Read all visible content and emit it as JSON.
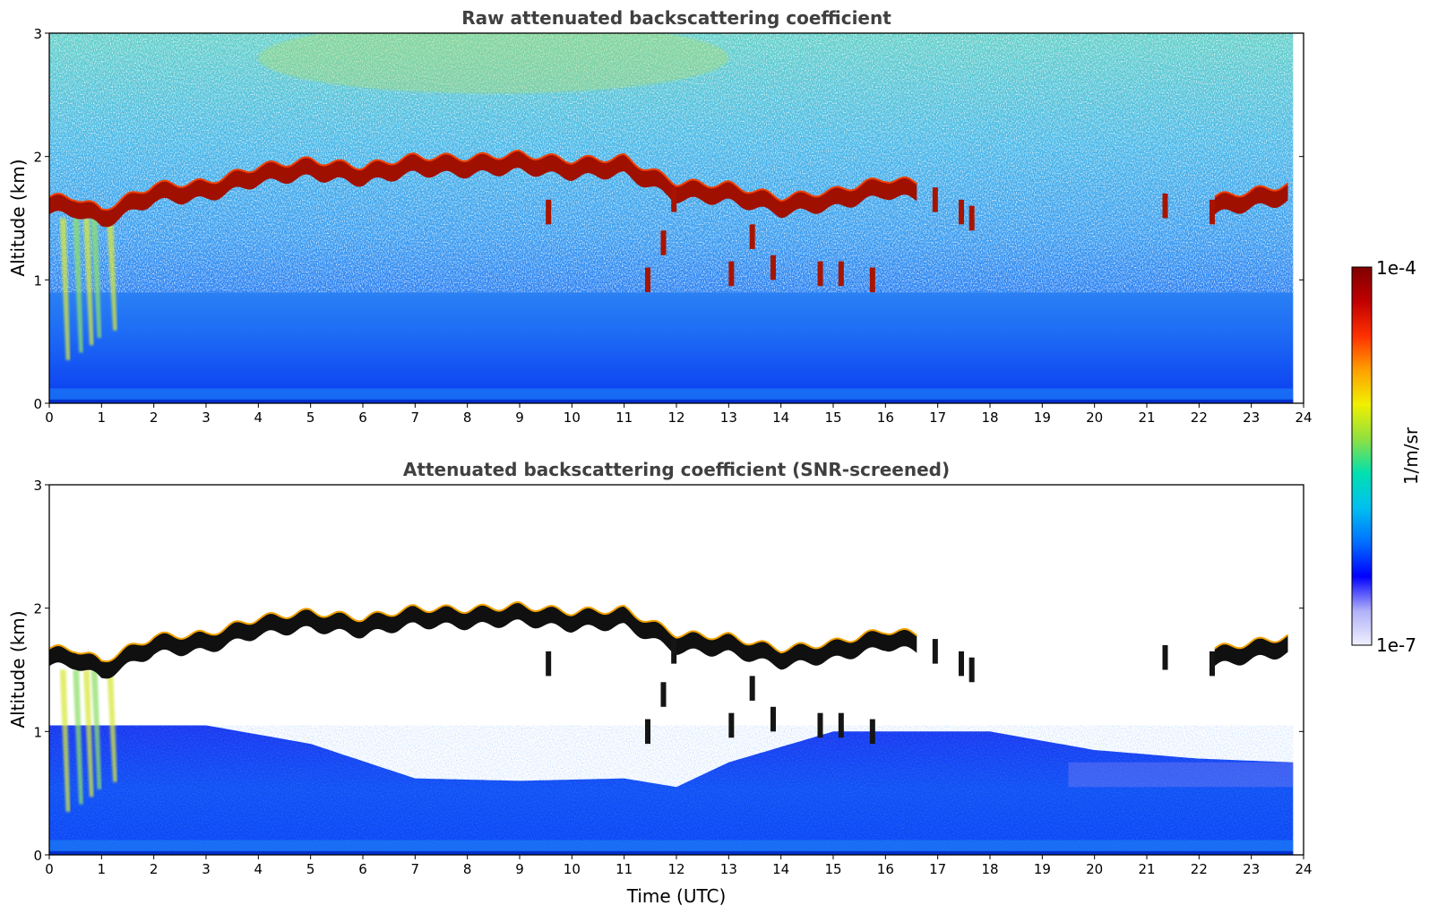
{
  "chart_data": [
    {
      "type": "heatmap",
      "title": "Raw attenuated backscattering coefficient",
      "xlabel": "",
      "ylabel": "Altitude (km)",
      "xlim": [
        0,
        24
      ],
      "ylim": [
        0,
        3
      ],
      "x_ticks": [
        "0",
        "1",
        "2",
        "3",
        "4",
        "5",
        "6",
        "7",
        "8",
        "9",
        "10",
        "11",
        "12",
        "13",
        "14",
        "15",
        "16",
        "17",
        "18",
        "19",
        "20",
        "21",
        "22",
        "23",
        "24"
      ],
      "y_ticks": [
        "0",
        "1",
        "2",
        "3"
      ],
      "data_end_time": 23.8,
      "cloud_base_km": [
        {
          "t": 0,
          "z": 1.6
        },
        {
          "t": 0.5,
          "z": 1.6
        },
        {
          "t": 1,
          "z": 1.5
        },
        {
          "t": 1.5,
          "z": 1.6
        },
        {
          "t": 2,
          "z": 1.7
        },
        {
          "t": 3,
          "z": 1.72
        },
        {
          "t": 4,
          "z": 1.85
        },
        {
          "t": 5,
          "z": 1.9
        },
        {
          "t": 6,
          "z": 1.85
        },
        {
          "t": 7,
          "z": 1.93
        },
        {
          "t": 8,
          "z": 1.92
        },
        {
          "t": 9,
          "z": 1.95
        },
        {
          "t": 10,
          "z": 1.9
        },
        {
          "t": 11,
          "z": 1.92
        },
        {
          "t": 12,
          "z": 1.72
        },
        {
          "t": 13,
          "z": 1.7
        },
        {
          "t": 14,
          "z": 1.6
        },
        {
          "t": 15,
          "z": 1.65
        },
        {
          "t": 16,
          "z": 1.75
        },
        {
          "t": 16.6,
          "z": 1.72
        },
        {
          "t": 22.3,
          "z": 1.6
        },
        {
          "t": 23,
          "z": 1.65
        },
        {
          "t": 23.7,
          "z": 1.7
        }
      ],
      "screened": false
    },
    {
      "type": "heatmap",
      "title": "Attenuated backscattering coefficient (SNR-screened)",
      "xlabel": "Time (UTC)",
      "ylabel": "Altitude (km)",
      "xlim": [
        0,
        24
      ],
      "ylim": [
        0,
        3
      ],
      "x_ticks": [
        "0",
        "1",
        "2",
        "3",
        "4",
        "5",
        "6",
        "7",
        "8",
        "9",
        "10",
        "11",
        "12",
        "13",
        "14",
        "15",
        "16",
        "17",
        "18",
        "19",
        "20",
        "21",
        "22",
        "23",
        "24"
      ],
      "y_ticks": [
        "0",
        "1",
        "2",
        "3"
      ],
      "data_end_time": 23.8,
      "boundary_layer_top_km": [
        {
          "t": 0,
          "z": 1.05
        },
        {
          "t": 3,
          "z": 1.05
        },
        {
          "t": 5,
          "z": 0.9
        },
        {
          "t": 7,
          "z": 0.62
        },
        {
          "t": 9,
          "z": 0.6
        },
        {
          "t": 11,
          "z": 0.62
        },
        {
          "t": 12,
          "z": 0.55
        },
        {
          "t": 13,
          "z": 0.75
        },
        {
          "t": 15,
          "z": 1.0
        },
        {
          "t": 18,
          "z": 1.0
        },
        {
          "t": 20,
          "z": 0.85
        },
        {
          "t": 22,
          "z": 0.78
        },
        {
          "t": 23.8,
          "z": 0.75
        }
      ],
      "screened": true
    }
  ],
  "colorbar": {
    "label": "1/m/sr",
    "min_label": "1e-7",
    "max_label": "1e-4",
    "scale": "log",
    "colors": [
      "#f0f0ff",
      "#b0b0f8",
      "#0000ff",
      "#0070ff",
      "#00c0f0",
      "#00e0b0",
      "#90e040",
      "#f0f000",
      "#ffa000",
      "#ff3000",
      "#c00000",
      "#800000"
    ]
  }
}
